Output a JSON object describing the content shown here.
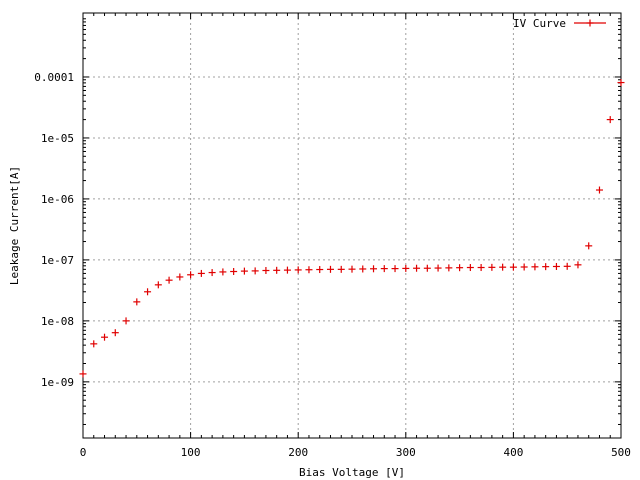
{
  "chart_data": {
    "type": "scatter",
    "title": "",
    "xlabel": "Bias Voltage [V]",
    "ylabel": "Leakage Current[A]",
    "xlim": [
      0,
      500
    ],
    "ylim": [
      1.2e-10,
      0.00112
    ],
    "yscale": "log",
    "grid": true,
    "legend_position": "top-right",
    "x_ticks": [
      0,
      100,
      200,
      300,
      400,
      500
    ],
    "x_tick_labels": [
      "0",
      "100",
      "200",
      "300",
      "400",
      "500"
    ],
    "y_ticks": [
      1e-09,
      1e-08,
      1e-07,
      1e-06,
      1e-05,
      0.0001
    ],
    "y_tick_labels": [
      "1e-09",
      "1e-08",
      "1e-07",
      "1e-06",
      "1e-05",
      "0.0001"
    ],
    "series": [
      {
        "name": "IV Curve",
        "color": "#e00000",
        "marker": "plus",
        "x": [
          0,
          10,
          20,
          30,
          40,
          50,
          60,
          70,
          80,
          90,
          100,
          110,
          120,
          130,
          140,
          150,
          160,
          170,
          180,
          190,
          200,
          210,
          220,
          230,
          240,
          250,
          260,
          270,
          280,
          290,
          300,
          310,
          320,
          330,
          340,
          350,
          360,
          370,
          380,
          390,
          400,
          410,
          420,
          430,
          440,
          450,
          460,
          470,
          480,
          490,
          500
        ],
        "y": [
          1.35e-09,
          4.2e-09,
          5.4e-09,
          6.4e-09,
          1e-08,
          2.05e-08,
          3e-08,
          3.9e-08,
          4.65e-08,
          5.25e-08,
          5.7e-08,
          6e-08,
          6.2e-08,
          6.35e-08,
          6.45e-08,
          6.55e-08,
          6.6e-08,
          6.7e-08,
          6.75e-08,
          6.8e-08,
          6.85e-08,
          6.9e-08,
          6.95e-08,
          7e-08,
          7e-08,
          7.05e-08,
          7.1e-08,
          7.15e-08,
          7.2e-08,
          7.2e-08,
          7.25e-08,
          7.3e-08,
          7.3e-08,
          7.35e-08,
          7.4e-08,
          7.45e-08,
          7.5e-08,
          7.5e-08,
          7.55e-08,
          7.6e-08,
          7.6e-08,
          7.65e-08,
          7.7e-08,
          7.75e-08,
          7.8e-08,
          7.85e-08,
          8.3e-08,
          1.7e-07,
          1.4e-06,
          2e-05,
          8.1e-05
        ]
      }
    ]
  }
}
